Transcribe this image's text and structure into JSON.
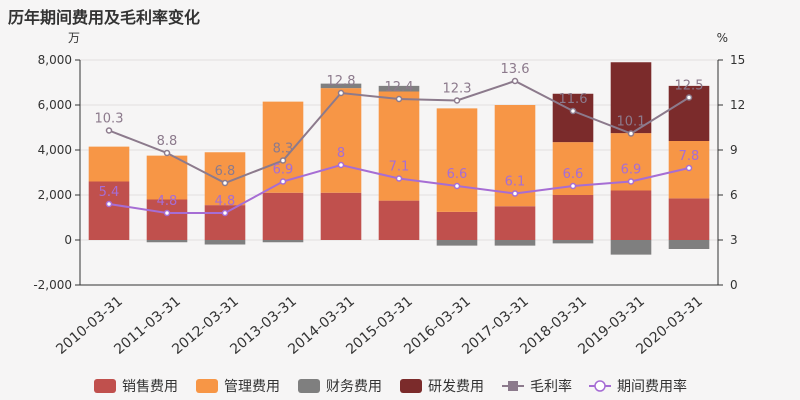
{
  "page_title": "历年期间费用及毛利率变化",
  "chart_data": {
    "type": "bar",
    "title": "历年期间费用及毛利率变化",
    "stacked": true,
    "categories": [
      "2010-03-31",
      "2011-03-31",
      "2012-03-31",
      "2013-03-31",
      "2014-03-31",
      "2015-03-31",
      "2016-03-31",
      "2017-03-31",
      "2018-03-31",
      "2019-03-31",
      "2020-03-31"
    ],
    "left_axis": {
      "unit": "万",
      "ylim": [
        -2000,
        8000
      ],
      "ticks": [
        "8,000",
        "6,000",
        "4,000",
        "2,000",
        "0",
        "-2,000"
      ],
      "tick_values": [
        8000,
        6000,
        4000,
        2000,
        0,
        -2000
      ]
    },
    "right_axis": {
      "unit": "%",
      "ylim": [
        0,
        15
      ],
      "ticks": [
        "15",
        "12",
        "9",
        "6",
        "3",
        "0"
      ],
      "tick_values": [
        15,
        12,
        9,
        6,
        3,
        0
      ]
    },
    "series": [
      {
        "name": "销售费用",
        "kind": "bar",
        "axis": "left",
        "color": "#c0504d",
        "values": [
          2600,
          1800,
          1550,
          2100,
          2100,
          1750,
          1250,
          1500,
          2000,
          2200,
          1850
        ]
      },
      {
        "name": "管理费用",
        "kind": "bar",
        "axis": "left",
        "color": "#f79646",
        "values": [
          1550,
          1950,
          2350,
          4050,
          4650,
          4850,
          4600,
          4500,
          2350,
          2550,
          2550
        ]
      },
      {
        "name": "财务费用",
        "kind": "bar",
        "axis": "left",
        "color": "#7f7f7f",
        "values": [
          0,
          -100,
          -200,
          -100,
          200,
          250,
          -250,
          -250,
          -150,
          -650,
          -400
        ]
      },
      {
        "name": "研发费用",
        "kind": "bar",
        "axis": "left",
        "color": "#7b2b2b",
        "values": [
          0,
          0,
          0,
          0,
          0,
          0,
          0,
          0,
          2150,
          3150,
          2450
        ]
      },
      {
        "name": "毛利率",
        "kind": "line",
        "axis": "right",
        "color": "#8c7a8c",
        "values": [
          10.3,
          8.8,
          6.8,
          8.3,
          12.8,
          12.4,
          12.3,
          13.6,
          11.6,
          10.1,
          12.5
        ],
        "labels": [
          "10.3",
          "8.8",
          "6.8",
          "8.3",
          "12.8",
          "12.4",
          "12.3",
          "13.6",
          "11.6",
          "10.1",
          "12.5"
        ]
      },
      {
        "name": "期间费用率",
        "kind": "line",
        "axis": "right",
        "color": "#a66dd4",
        "values": [
          5.4,
          4.8,
          4.8,
          6.9,
          8.0,
          7.1,
          6.6,
          6.1,
          6.6,
          6.9,
          7.8
        ],
        "labels": [
          "5.4",
          "4.8",
          "4.8",
          "6.9",
          "8",
          "7.1",
          "6.6",
          "6.1",
          "6.6",
          "6.9",
          "7.8"
        ]
      }
    ],
    "legend_position": "bottom"
  }
}
